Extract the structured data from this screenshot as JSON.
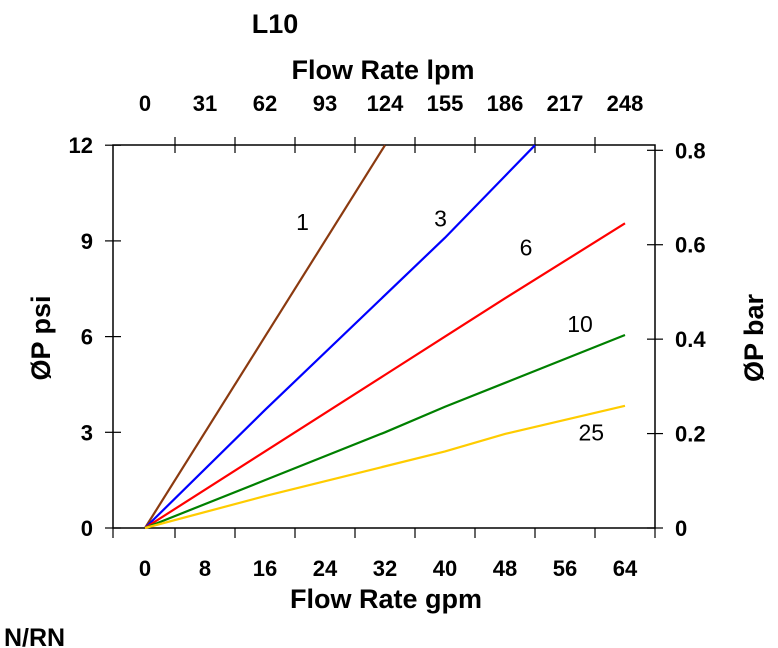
{
  "chart_data": {
    "type": "line",
    "title": "L10",
    "footnote": "N/RN",
    "xlabel": "Flow Rate gpm",
    "x2label": "Flow Rate lpm",
    "ylabel": "ØP psi",
    "y2label": "ØP bar",
    "xlim": [
      0,
      64
    ],
    "ylim": [
      0,
      12
    ],
    "x_tick_labels": [
      "0",
      "8",
      "16",
      "24",
      "32",
      "40",
      "48",
      "56",
      "64"
    ],
    "x2_tick_labels": [
      "0",
      "31",
      "62",
      "93",
      "124",
      "155",
      "186",
      "217",
      "248"
    ],
    "y_tick_labels": [
      "0",
      "3",
      "6",
      "9",
      "12"
    ],
    "y2_tick_labels": [
      "0",
      "0.2",
      "0.4",
      "0.6",
      "0.8"
    ],
    "grid": false,
    "legend": "none",
    "series": [
      {
        "name": "1",
        "color": "#8b3a10",
        "x": [
          0,
          16,
          32
        ],
        "y": [
          0,
          6.0,
          12
        ],
        "label_at": [
          21,
          9.6
        ]
      },
      {
        "name": "3",
        "color": "#0000ff",
        "x": [
          0,
          16,
          40,
          52
        ],
        "y": [
          0,
          3.7,
          9.1,
          12
        ],
        "label_at": [
          39.4,
          9.7
        ]
      },
      {
        "name": "6",
        "color": "#ff0000",
        "x": [
          0,
          16,
          32,
          40,
          48,
          64
        ],
        "y": [
          0,
          2.4,
          4.8,
          6.0,
          7.2,
          9.55
        ],
        "label_at": [
          50.8,
          8.8
        ]
      },
      {
        "name": "10",
        "color": "#008000",
        "x": [
          0,
          16,
          32,
          40,
          64
        ],
        "y": [
          0,
          1.5,
          3.0,
          3.8,
          6.05
        ],
        "label_at": [
          58,
          6.4
        ]
      },
      {
        "name": "25",
        "color": "#ffcc00",
        "x": [
          0,
          16,
          40,
          48,
          64
        ],
        "y": [
          0,
          1.0,
          2.4,
          2.95,
          3.83
        ],
        "label_at": [
          59.5,
          3.0
        ]
      }
    ]
  }
}
